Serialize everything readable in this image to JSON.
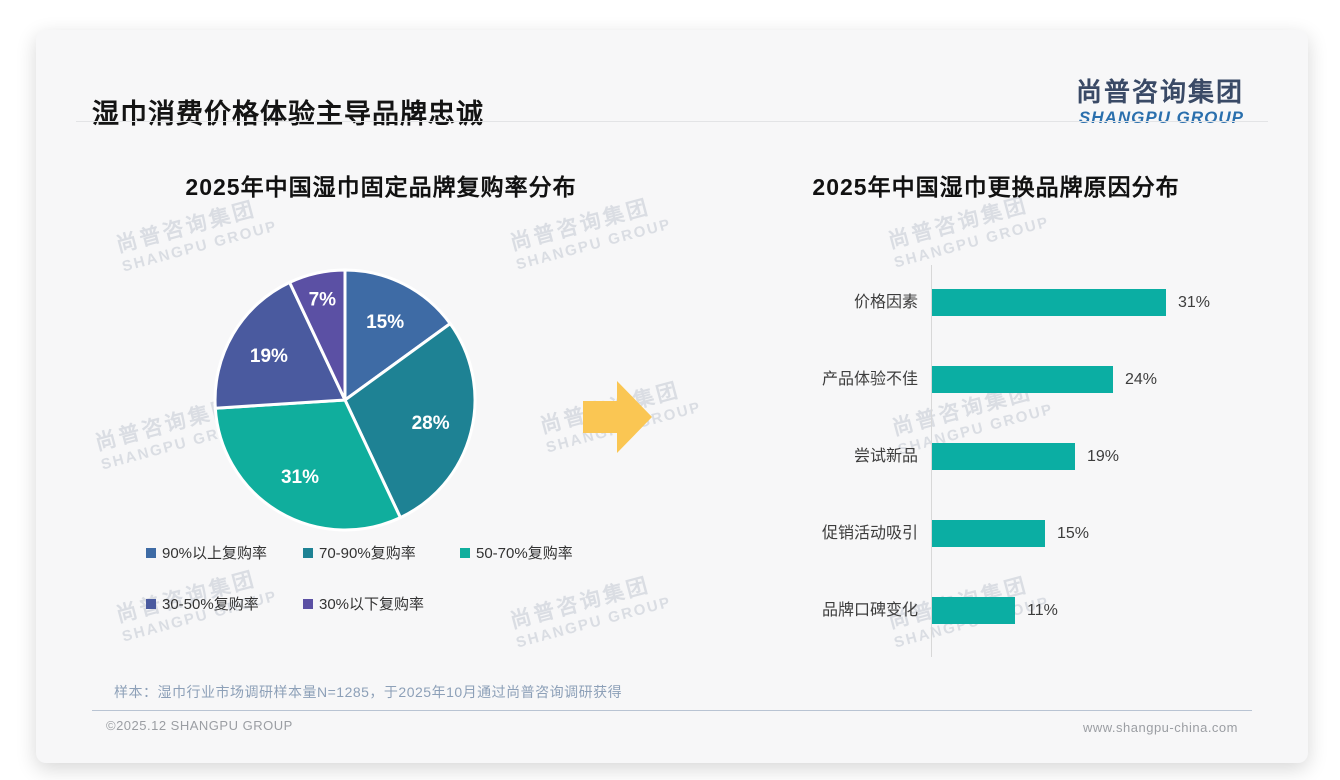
{
  "page": {
    "header": {
      "title": "湿巾消费价格体验主导品牌忠诚"
    },
    "logo": {
      "cn": "尚普咨询集团",
      "en": "SHANGPU GROUP"
    },
    "sample_note": "样本：湿巾行业市场调研样本量N=1285，于2025年10月通过尚普咨询调研获得",
    "footer_left": "©2025.12 SHANGPU GROUP",
    "footer_right": "www.shangpu-china.com"
  },
  "watermark": {
    "cn": "尚普咨询集团",
    "en": "SHANGPU GROUP"
  },
  "arrow_icon": {
    "color": "#FAC653"
  },
  "chart_data": [
    {
      "type": "pie",
      "title": "2025年中国湿巾固定品牌复购率分布",
      "labels": [
        "90%以上复购率",
        "70-90%复购率",
        "50-70%复购率",
        "30-50%复购率",
        "30%以下复购率"
      ],
      "values": [
        15,
        28,
        31,
        19,
        7
      ],
      "data_labels": [
        "15%",
        "28%",
        "31%",
        "19%",
        "7%"
      ],
      "colors": [
        "#3E6BA5",
        "#1E8294",
        "#10AE9D",
        "#4A5A9F",
        "#5B50A4"
      ],
      "start_angle_deg": 0,
      "direction": "clockwise",
      "legend_position": "bottom"
    },
    {
      "type": "bar",
      "orientation": "horizontal",
      "title": "2025年中国湿巾更换品牌原因分布",
      "categories": [
        "价格因素",
        "产品体验不佳",
        "尝试新品",
        "促销活动吸引",
        "品牌口碑变化"
      ],
      "values": [
        31,
        24,
        19,
        15,
        11
      ],
      "data_labels": [
        "31%",
        "24%",
        "19%",
        "15%",
        "11%"
      ],
      "bar_color": "#0BAEA3",
      "xlim": [
        0,
        34
      ],
      "grid": false,
      "value_labels_position": "end"
    }
  ]
}
